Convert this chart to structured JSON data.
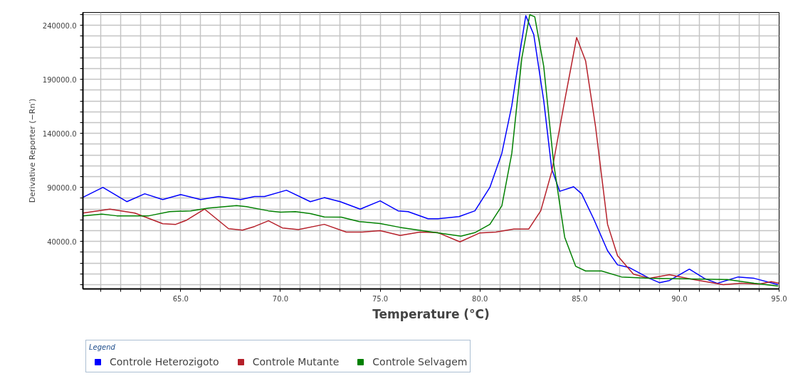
{
  "chart_data": {
    "type": "line",
    "xlabel": "Temperature (°C)",
    "ylabel": "Derivative Reporter (−Rn′)",
    "legend_title": "Legend",
    "xlim": [
      60.1,
      95
    ],
    "ylim": [
      -4000,
      252000
    ],
    "xticks": [
      {
        "value": 61,
        "label": null
      },
      {
        "value": 62,
        "label": null
      },
      {
        "value": 63,
        "label": null
      },
      {
        "value": 64,
        "label": null
      },
      {
        "value": 65,
        "label": "65.0"
      },
      {
        "value": 66,
        "label": null
      },
      {
        "value": 67,
        "label": null
      },
      {
        "value": 68,
        "label": null
      },
      {
        "value": 69,
        "label": null
      },
      {
        "value": 70,
        "label": "70.0"
      },
      {
        "value": 71,
        "label": null
      },
      {
        "value": 72,
        "label": null
      },
      {
        "value": 73,
        "label": null
      },
      {
        "value": 74,
        "label": null
      },
      {
        "value": 75,
        "label": "75.0"
      },
      {
        "value": 76,
        "label": null
      },
      {
        "value": 77,
        "label": null
      },
      {
        "value": 78,
        "label": null
      },
      {
        "value": 79,
        "label": null
      },
      {
        "value": 80,
        "label": "80.0"
      },
      {
        "value": 81,
        "label": null
      },
      {
        "value": 82,
        "label": null
      },
      {
        "value": 83,
        "label": null
      },
      {
        "value": 84,
        "label": null
      },
      {
        "value": 85,
        "label": "85.0"
      },
      {
        "value": 86,
        "label": null
      },
      {
        "value": 87,
        "label": null
      },
      {
        "value": 88,
        "label": null
      },
      {
        "value": 89,
        "label": null
      },
      {
        "value": 90,
        "label": "90.0"
      },
      {
        "value": 91,
        "label": null
      },
      {
        "value": 92,
        "label": null
      },
      {
        "value": 93,
        "label": null
      },
      {
        "value": 94,
        "label": null
      },
      {
        "value": 95,
        "label": "95.0"
      }
    ],
    "yticks": [
      {
        "value": 0,
        "label": null
      },
      {
        "value": 10000,
        "label": null
      },
      {
        "value": 20000,
        "label": null
      },
      {
        "value": 30000,
        "label": null
      },
      {
        "value": 40000,
        "label": "40000.0"
      },
      {
        "value": 50000,
        "label": null
      },
      {
        "value": 60000,
        "label": null
      },
      {
        "value": 70000,
        "label": null
      },
      {
        "value": 80000,
        "label": null
      },
      {
        "value": 90000,
        "label": "90000.0"
      },
      {
        "value": 100000,
        "label": null
      },
      {
        "value": 110000,
        "label": null
      },
      {
        "value": 120000,
        "label": null
      },
      {
        "value": 130000,
        "label": null
      },
      {
        "value": 140000,
        "label": "140000.0"
      },
      {
        "value": 150000,
        "label": null
      },
      {
        "value": 160000,
        "label": null
      },
      {
        "value": 170000,
        "label": null
      },
      {
        "value": 180000,
        "label": null
      },
      {
        "value": 190000,
        "label": "190000.0"
      },
      {
        "value": 200000,
        "label": null
      },
      {
        "value": 210000,
        "label": null
      },
      {
        "value": 220000,
        "label": null
      },
      {
        "value": 230000,
        "label": null
      },
      {
        "value": 240000,
        "label": "240000.0"
      },
      {
        "value": 250000,
        "label": null
      }
    ],
    "grid": true,
    "legend": "bottom",
    "marker": "none",
    "line_style": "solid",
    "series": [
      {
        "name": "Controle Heterozigoto",
        "color": "#0000ff",
        "x": [
          60.1,
          61.1,
          62.3,
          63.2,
          64.1,
          65.0,
          66.0,
          66.9,
          68.0,
          68.7,
          69.2,
          70.3,
          71.5,
          72.2,
          73.0,
          74.0,
          75.0,
          75.9,
          76.4,
          77.4,
          77.9,
          78.95,
          79.75,
          80.5,
          81.1,
          81.6,
          82.0,
          82.3,
          82.7,
          83.2,
          83.6,
          84.0,
          84.7,
          85.1,
          85.7,
          86.4,
          86.9,
          87.5,
          88.5,
          89.0,
          89.5,
          90.5,
          91.25,
          91.9,
          92.95,
          93.75,
          94.95
        ],
        "values": [
          80800,
          90000,
          76800,
          84100,
          78800,
          83400,
          78800,
          81500,
          78800,
          81500,
          81500,
          87400,
          76800,
          80500,
          76800,
          69900,
          77500,
          68300,
          67600,
          61000,
          61000,
          63000,
          68300,
          90000,
          121600,
          165700,
          214400,
          249000,
          231500,
          170300,
          107100,
          86400,
          90600,
          84100,
          61000,
          31400,
          18300,
          15700,
          5800,
          1800,
          3800,
          14300,
          5800,
          1200,
          7100,
          5800,
          0
        ]
      },
      {
        "name": "Controle Mutante",
        "color": "#b5202a",
        "x": [
          60.1,
          61.45,
          62.7,
          64.1,
          64.75,
          65.3,
          66.2,
          67.4,
          68.1,
          68.7,
          69.4,
          70.1,
          70.9,
          72.2,
          73.3,
          74.1,
          75.0,
          76.0,
          77.0,
          77.9,
          79.0,
          80.0,
          80.8,
          81.7,
          82.45,
          83.05,
          83.6,
          84.25,
          84.85,
          85.3,
          85.8,
          86.4,
          86.9,
          87.7,
          88.5,
          89.5,
          90.6,
          92.2,
          93.1,
          94.0,
          94.6,
          95.0
        ],
        "values": [
          66300,
          69900,
          66300,
          56400,
          55800,
          59700,
          69900,
          51800,
          50500,
          53800,
          59100,
          52500,
          50900,
          55800,
          48700,
          48700,
          49900,
          45500,
          48600,
          48100,
          39600,
          47900,
          48600,
          51500,
          51500,
          68300,
          104500,
          170300,
          228800,
          207100,
          145900,
          55800,
          26800,
          9700,
          5800,
          9100,
          5100,
          0,
          1200,
          500,
          2800,
          1200
        ]
      },
      {
        "name": "Controle Selvagem",
        "color": "#008000",
        "x": [
          60.1,
          61.05,
          61.8,
          63.4,
          64.45,
          65.5,
          66.4,
          67.8,
          68.3,
          69.4,
          70.0,
          70.75,
          71.5,
          72.2,
          73.05,
          73.95,
          75.0,
          76.0,
          77.6,
          79.05,
          79.75,
          80.5,
          81.1,
          81.6,
          82.1,
          82.5,
          82.75,
          83.2,
          83.7,
          84.25,
          84.8,
          85.3,
          86.1,
          87.1,
          88.5,
          92.4,
          93.75,
          94.95
        ],
        "values": [
          63700,
          65200,
          63700,
          63700,
          67600,
          68300,
          70900,
          73200,
          72200,
          68300,
          67000,
          67600,
          65700,
          62600,
          62400,
          58400,
          56500,
          53000,
          48600,
          44900,
          48100,
          55800,
          72900,
          121600,
          209500,
          249900,
          248000,
          202100,
          112000,
          43900,
          17000,
          12600,
          12600,
          7100,
          5800,
          4700,
          1200,
          -1300
        ]
      }
    ]
  }
}
